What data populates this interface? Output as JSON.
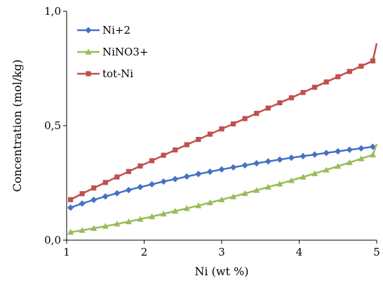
{
  "chart_data": {
    "type": "line",
    "xlabel": "Ni (wt %)",
    "ylabel": "Concentration (mol/kg)",
    "xlim": [
      1,
      5
    ],
    "ylim": [
      0,
      1
    ],
    "x_ticks": [
      1,
      2,
      3,
      4,
      5
    ],
    "x_tick_labels": [
      "1",
      "2",
      "3",
      "4",
      "5"
    ],
    "y_ticks": [
      0,
      0.5,
      1
    ],
    "y_tick_labels": [
      "0,0",
      "0,5",
      "1,0"
    ],
    "grid": false,
    "legend_position": "top-left",
    "x": [
      1.05,
      1.2,
      1.35,
      1.5,
      1.65,
      1.8,
      1.95,
      2.1,
      2.25,
      2.4,
      2.55,
      2.7,
      2.85,
      3.0,
      3.15,
      3.3,
      3.45,
      3.6,
      3.75,
      3.9,
      4.05,
      4.2,
      4.35,
      4.5,
      4.65,
      4.8,
      4.95
    ],
    "series": [
      {
        "name": "Ni+2",
        "color": "#4472c4",
        "marker": "diamond",
        "values": [
          0.142,
          0.16,
          0.176,
          0.191,
          0.205,
          0.219,
          0.232,
          0.244,
          0.256,
          0.267,
          0.278,
          0.289,
          0.299,
          0.309,
          0.318,
          0.327,
          0.336,
          0.344,
          0.352,
          0.36,
          0.367,
          0.374,
          0.381,
          0.388,
          0.395,
          0.401,
          0.408
        ]
      },
      {
        "name": "NiNO3+",
        "color": "#9bbb59",
        "marker": "triangle",
        "values": [
          0.035,
          0.043,
          0.052,
          0.061,
          0.071,
          0.081,
          0.092,
          0.103,
          0.115,
          0.127,
          0.139,
          0.151,
          0.164,
          0.177,
          0.19,
          0.204,
          0.218,
          0.232,
          0.246,
          0.261,
          0.276,
          0.291,
          0.307,
          0.323,
          0.339,
          0.356,
          0.373
        ]
      },
      {
        "name": "tot-Ni",
        "color": "#c0504d",
        "marker": "square",
        "values": [
          0.177,
          0.203,
          0.228,
          0.252,
          0.276,
          0.3,
          0.324,
          0.347,
          0.371,
          0.394,
          0.417,
          0.44,
          0.463,
          0.486,
          0.508,
          0.531,
          0.554,
          0.577,
          0.6,
          0.622,
          0.645,
          0.668,
          0.691,
          0.714,
          0.737,
          0.76,
          0.783
        ]
      }
    ]
  }
}
